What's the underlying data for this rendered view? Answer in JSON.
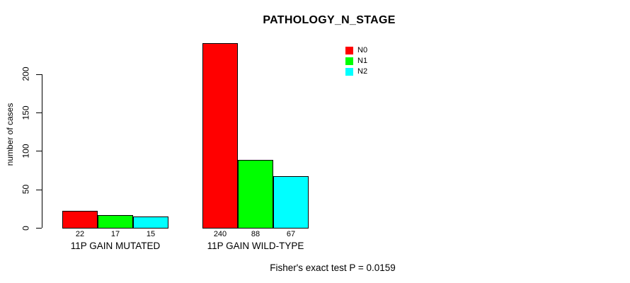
{
  "chart_data": {
    "type": "bar",
    "title": "PATHOLOGY_N_STAGE",
    "ylabel": "number of cases",
    "xlabel": "",
    "categories": [
      "11P GAIN MUTATED",
      "11P GAIN WILD-TYPE"
    ],
    "series": [
      {
        "name": "N0",
        "color": "#FF0000",
        "values": [
          22,
          240
        ]
      },
      {
        "name": "N1",
        "color": "#00FF00",
        "values": [
          17,
          88
        ]
      },
      {
        "name": "N2",
        "color": "#00FFFF",
        "values": [
          15,
          67
        ]
      }
    ],
    "yticks": [
      0,
      50,
      100,
      150,
      200
    ],
    "ylim": [
      0,
      248
    ],
    "grid": false,
    "bar_value_labels": true,
    "legend_position": "inside-top-right",
    "annotation": "Fisher's exact test P = 0.0159"
  }
}
